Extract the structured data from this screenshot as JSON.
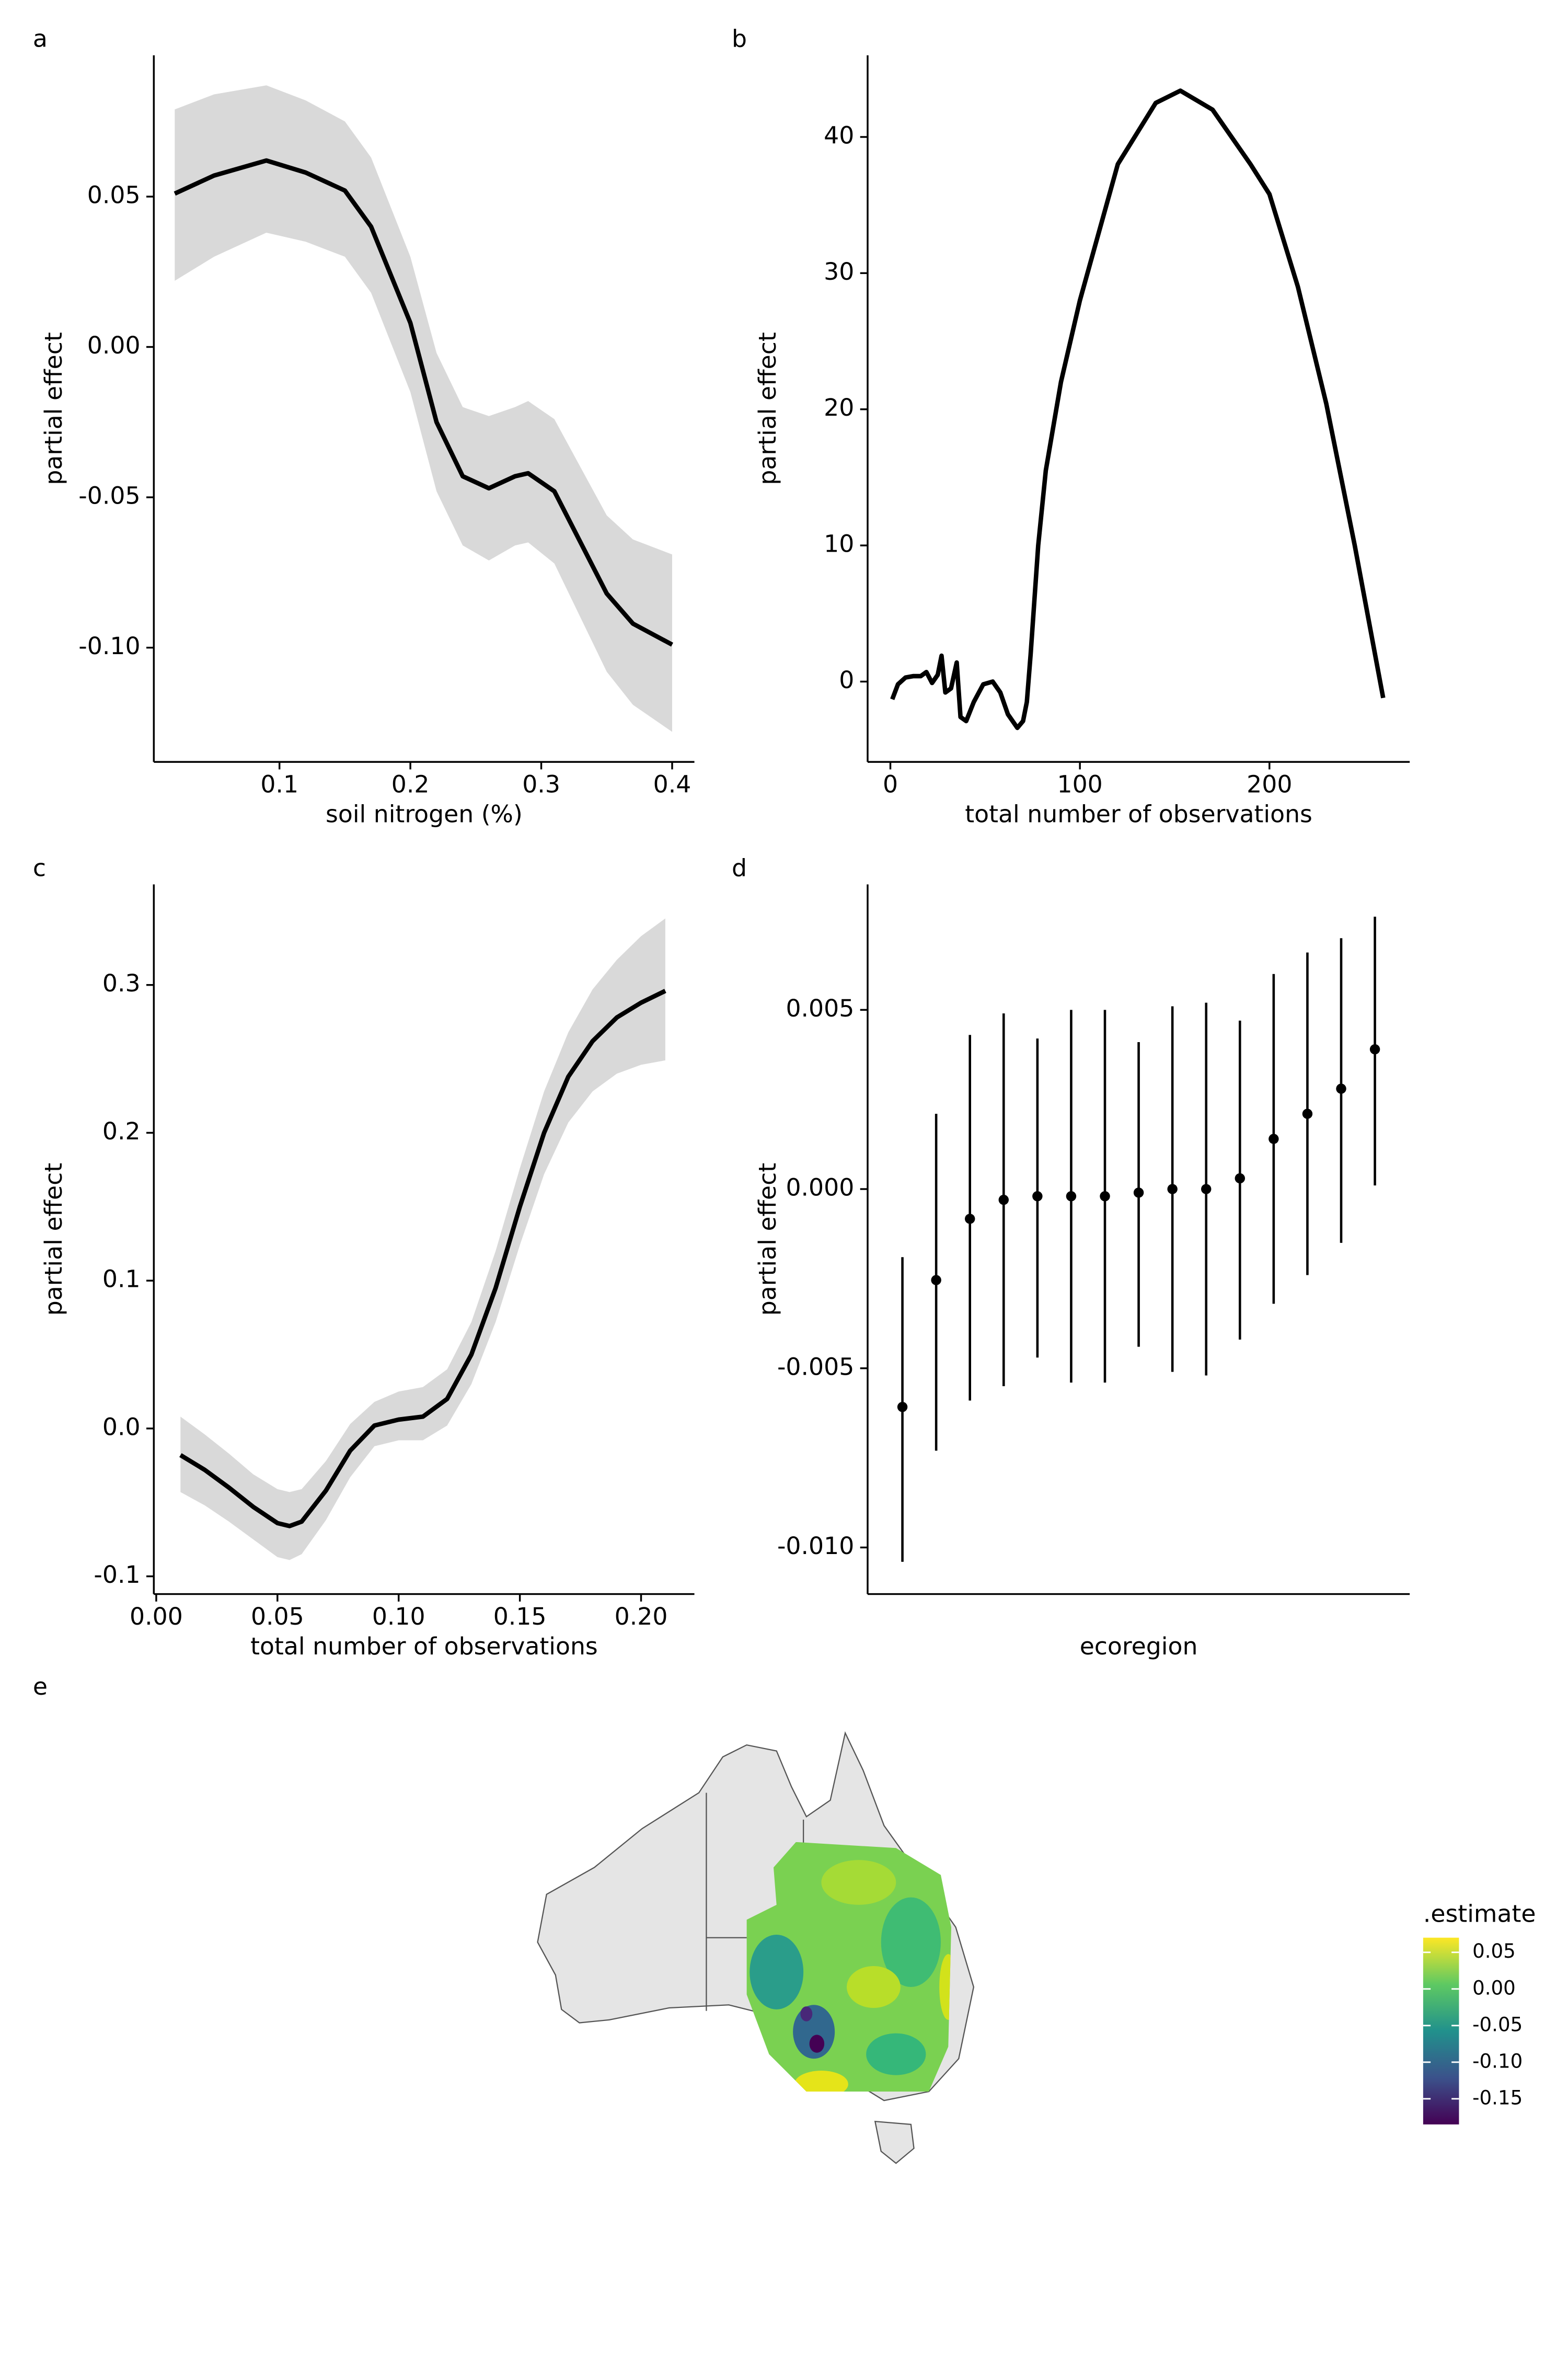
{
  "chart_data": [
    {
      "type": "line",
      "label": "a",
      "xlabel": "soil nitrogen (%)",
      "ylabel": "partial effect",
      "x": [
        0.02,
        0.05,
        0.09,
        0.12,
        0.15,
        0.17,
        0.2,
        0.22,
        0.24,
        0.26,
        0.28,
        0.29,
        0.31,
        0.33,
        0.35,
        0.37,
        0.4
      ],
      "values": [
        0.051,
        0.057,
        0.062,
        0.058,
        0.052,
        0.04,
        0.008,
        -0.025,
        -0.043,
        -0.047,
        -0.043,
        -0.042,
        -0.048,
        -0.065,
        -0.082,
        -0.092,
        -0.099
      ],
      "lower": [
        0.022,
        0.03,
        0.038,
        0.035,
        0.03,
        0.018,
        -0.015,
        -0.048,
        -0.066,
        -0.071,
        -0.066,
        -0.065,
        -0.072,
        -0.09,
        -0.108,
        -0.119,
        -0.128
      ],
      "upper": [
        0.079,
        0.084,
        0.087,
        0.082,
        0.075,
        0.063,
        0.03,
        -0.002,
        -0.02,
        -0.023,
        -0.02,
        -0.018,
        -0.024,
        -0.04,
        -0.056,
        -0.064,
        -0.069
      ],
      "color": "#000000",
      "band_color": "#d9d9d9",
      "xlim": [
        0.004,
        0.417
      ],
      "xticks": [
        0.1,
        0.2,
        0.3,
        0.4
      ],
      "ylim": [
        -0.138,
        0.097
      ],
      "yticks": [
        {
          "value": -0.1,
          "label": "-0.10"
        },
        -0.05,
        {
          "value": 0,
          "label": "0.00"
        },
        0.05
      ]
    },
    {
      "type": "line",
      "label": "b",
      "xlabel": "total number of observations",
      "ylabel": "partial effect",
      "x": [
        1,
        4,
        8,
        12,
        16,
        19,
        22,
        25,
        27,
        29,
        32,
        35,
        37,
        40,
        44,
        49,
        54,
        58,
        62,
        67,
        70,
        72,
        74,
        78,
        82,
        90,
        100,
        120,
        140,
        153,
        170,
        190,
        200,
        215,
        230,
        245,
        260
      ],
      "values": [
        -1.3,
        -0.2,
        0.3,
        0.4,
        0.4,
        0.7,
        -0.1,
        0.5,
        1.9,
        -0.8,
        -0.5,
        1.4,
        -2.6,
        -2.9,
        -1.5,
        -0.2,
        0.0,
        -0.8,
        -2.4,
        -3.4,
        -2.9,
        -1.5,
        2.0,
        10,
        15.5,
        22,
        28,
        38,
        42.5,
        43.4,
        42,
        38,
        35.8,
        29,
        20.4,
        10,
        -1.2
      ],
      "color": "#000000",
      "xlim": [
        -12,
        274
      ],
      "xticks": [
        0,
        100,
        200
      ],
      "ylim": [
        -5.9,
        46
      ],
      "yticks": [
        0,
        10,
        20,
        30,
        40
      ]
    },
    {
      "type": "line",
      "label": "c",
      "xlabel": "total number of observations",
      "ylabel": "partial effect",
      "x": [
        0.01,
        0.02,
        0.03,
        0.04,
        0.05,
        0.055,
        0.06,
        0.07,
        0.08,
        0.09,
        0.1,
        0.11,
        0.12,
        0.13,
        0.14,
        0.15,
        0.16,
        0.17,
        0.18,
        0.19,
        0.2,
        0.21
      ],
      "values": [
        -0.018,
        -0.028,
        -0.04,
        -0.053,
        -0.064,
        -0.066,
        -0.063,
        -0.042,
        -0.015,
        0.002,
        0.006,
        0.008,
        0.02,
        0.05,
        0.095,
        0.15,
        0.2,
        0.238,
        0.262,
        0.278,
        0.288,
        0.296
      ],
      "lower": [
        -0.043,
        -0.052,
        -0.063,
        -0.075,
        -0.087,
        -0.089,
        -0.085,
        -0.062,
        -0.033,
        -0.012,
        -0.008,
        -0.008,
        0.002,
        0.03,
        0.072,
        0.124,
        0.172,
        0.207,
        0.228,
        0.24,
        0.246,
        0.249
      ],
      "upper": [
        0.008,
        -0.004,
        -0.017,
        -0.031,
        -0.041,
        -0.043,
        -0.041,
        -0.022,
        0.003,
        0.018,
        0.025,
        0.028,
        0.04,
        0.072,
        0.12,
        0.176,
        0.228,
        0.268,
        0.297,
        0.317,
        0.333,
        0.345
      ],
      "color": "#000000",
      "band_color": "#d9d9d9",
      "xlim": [
        -0.001,
        0.222
      ],
      "xticks": [
        {
          "value": 0,
          "label": "0.00"
        },
        0.05,
        {
          "value": 0.1,
          "label": "0.10"
        },
        0.15,
        {
          "value": 0.2,
          "label": "0.20"
        }
      ],
      "ylim": [
        -0.112,
        0.368
      ],
      "yticks": [
        -0.1,
        {
          "value": 0,
          "label": "0.0"
        },
        0.1,
        0.2,
        0.3
      ]
    },
    {
      "type": "pointrange",
      "label": "d",
      "xlabel": "ecoregion",
      "ylabel": "partial effect",
      "categories": [
        null,
        null,
        null,
        null,
        null,
        null,
        null,
        null,
        null,
        null,
        null,
        null,
        null,
        null,
        null
      ],
      "values": [
        -0.00608,
        -0.00254,
        -0.00083,
        -0.0003,
        -0.0002,
        -0.0002,
        -0.0002,
        -0.0001,
        0.0,
        0.0,
        0.0003,
        0.0014,
        0.0021,
        0.0028,
        0.0039
      ],
      "lower": [
        -0.0104,
        -0.0073,
        -0.0059,
        -0.0055,
        -0.0047,
        -0.0054,
        -0.0054,
        -0.0044,
        -0.0051,
        -0.0052,
        -0.0042,
        -0.0032,
        -0.0024,
        -0.0015,
        0.0001
      ],
      "upper": [
        -0.0019,
        0.0021,
        0.0043,
        0.0049,
        0.0042,
        0.005,
        0.005,
        0.0041,
        0.0051,
        0.0052,
        0.0047,
        0.006,
        0.0066,
        0.007,
        0.0076
      ],
      "color": "#000000",
      "ylim": [
        -0.0113,
        0.0085
      ],
      "yticks": [
        {
          "value": -0.01,
          "label": "-0.010"
        },
        -0.005,
        {
          "value": 0,
          "label": "0.000"
        },
        0.005
      ]
    },
    {
      "type": "map",
      "label": "e",
      "legend_title": ".estimate",
      "colors": [
        "#440154",
        "#3b528b",
        "#21918c",
        "#5ec962",
        "#fde725"
      ],
      "limits": [
        -0.185,
        0.07
      ],
      "ticks": [
        {
          "value": 0.05,
          "label": "0.05"
        },
        {
          "value": 0,
          "label": "0.00"
        },
        {
          "value": -0.05,
          "label": "-0.05"
        },
        {
          "value": -0.1,
          "label": "-0.10"
        },
        {
          "value": -0.15,
          "label": "-0.15"
        }
      ]
    }
  ]
}
